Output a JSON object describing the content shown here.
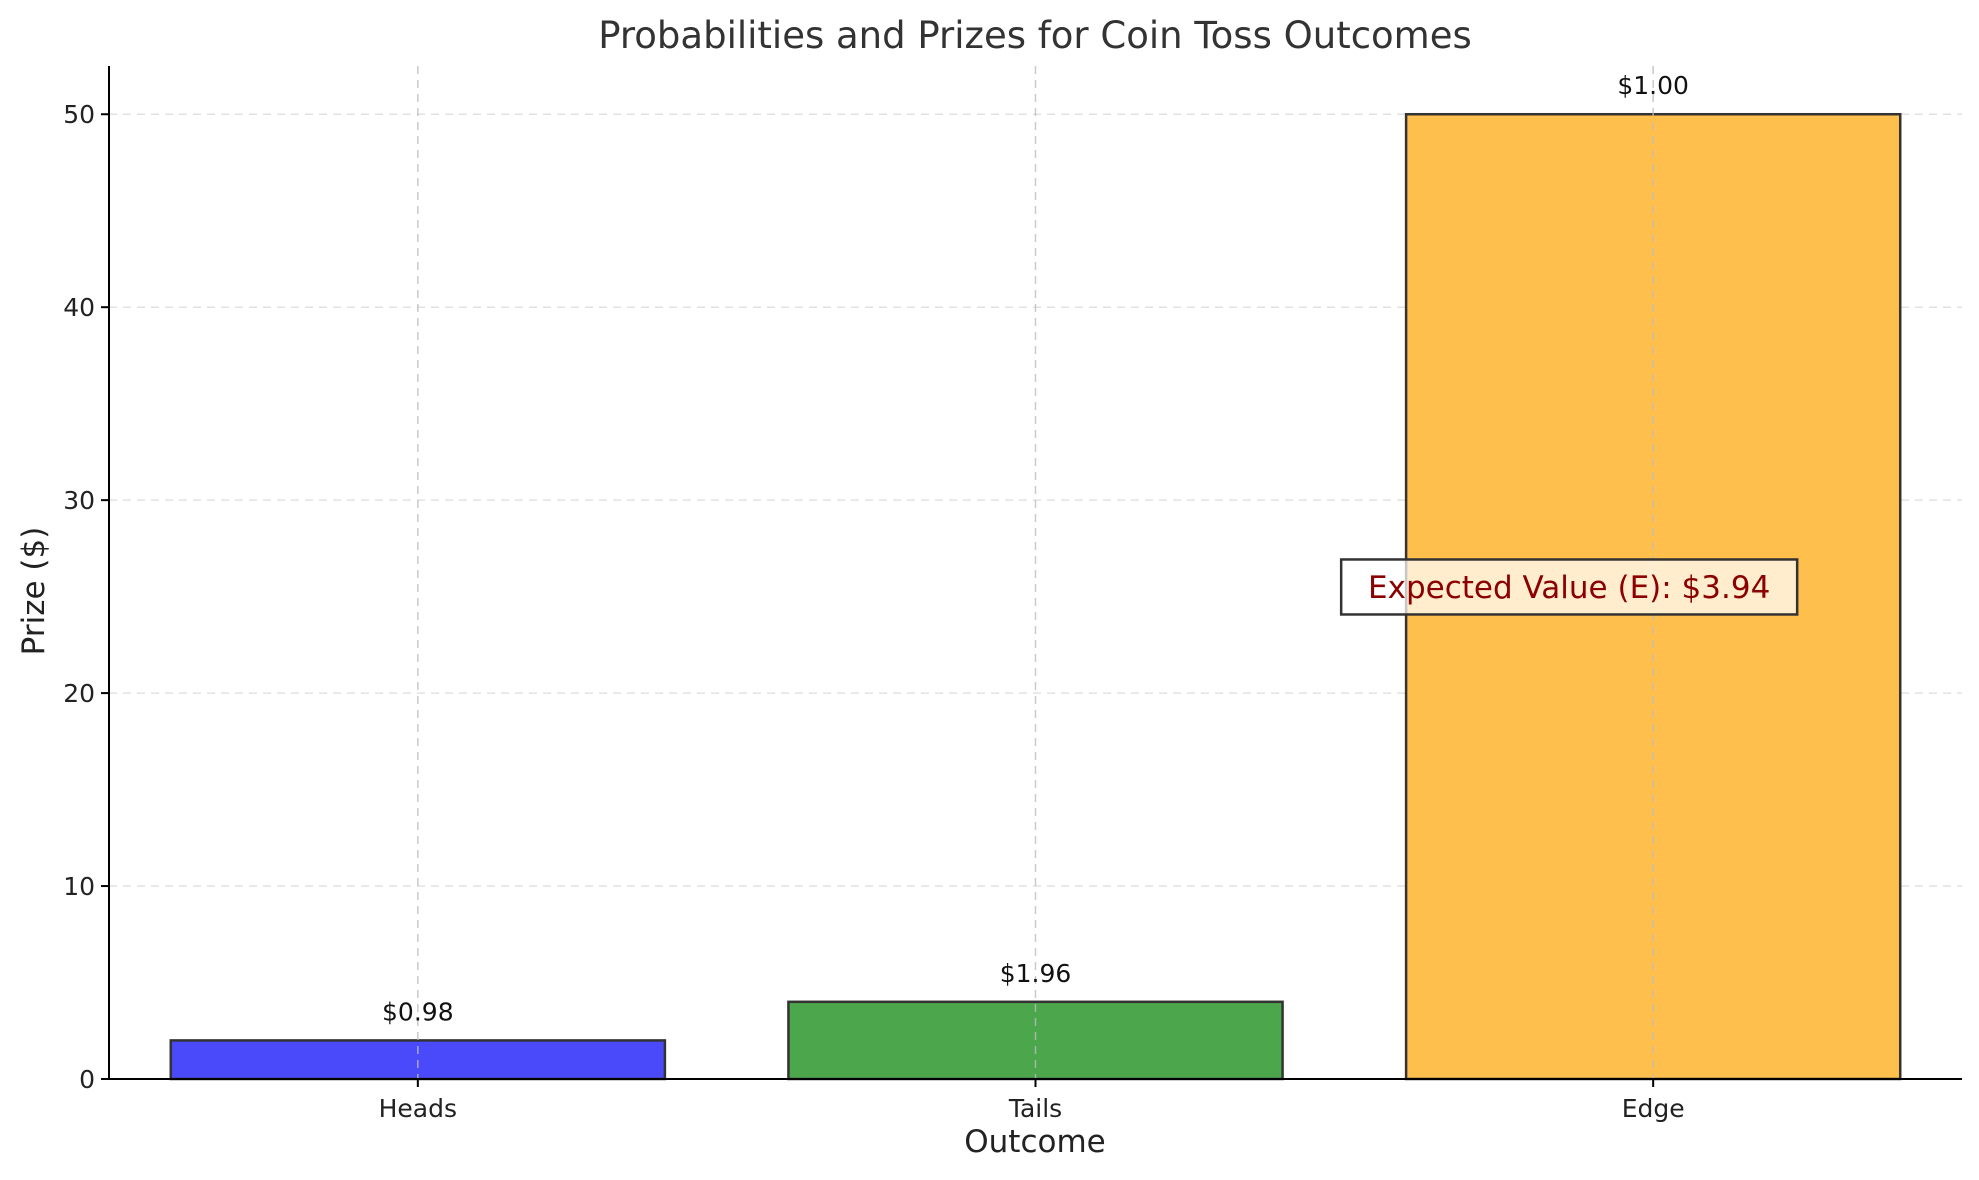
{
  "chart_data": {
    "type": "bar",
    "title": "Probabilities and Prizes for Coin Toss Outcomes",
    "xlabel": "Outcome",
    "ylabel": "Prize ($)",
    "categories": [
      "Heads",
      "Tails",
      "Edge"
    ],
    "values": [
      2,
      4,
      50
    ],
    "data_labels": [
      "$0.98",
      "$1.96",
      "$1.00"
    ],
    "colors": [
      "#4a4afb",
      "#4ca64c",
      "#ffbf4d"
    ],
    "edge_color": "#333333",
    "ylim": [
      0,
      52.5
    ],
    "yticks": [
      0,
      10,
      20,
      30,
      40,
      50
    ],
    "grid": true,
    "annotation": {
      "text": "Expected Value (E): $3.94",
      "color": "#8b0000",
      "category": "Edge",
      "y": 25.5
    }
  }
}
